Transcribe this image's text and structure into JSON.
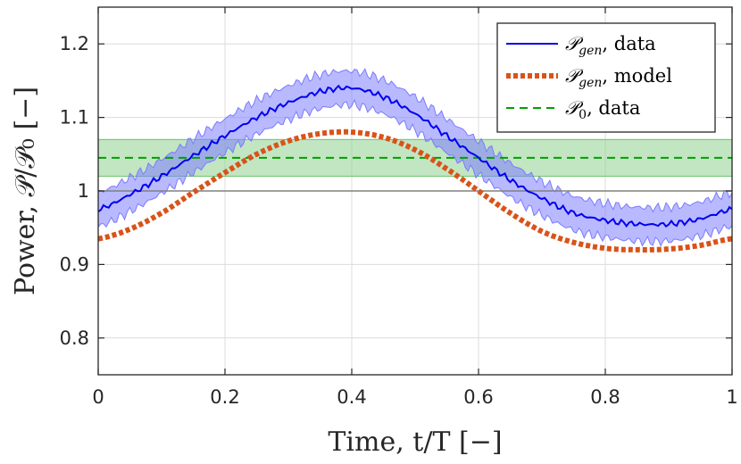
{
  "chart_data": {
    "type": "line",
    "title": "",
    "xlabel": "Time, t/T [−]",
    "ylabel": "Power, 𝒫/𝒫₀ [−]",
    "xlim": [
      0,
      1
    ],
    "ylim": [
      0.75,
      1.25
    ],
    "grid": true,
    "legend_position": "top-right",
    "x_ticks": [
      0,
      0.2,
      0.4,
      0.6,
      0.8,
      1
    ],
    "x_tick_labels": [
      "0",
      "0.2",
      "0.4",
      "0.6",
      "0.8",
      "1"
    ],
    "y_ticks": [
      0.8,
      0.9,
      1.0,
      1.1,
      1.2
    ],
    "y_tick_labels": [
      "0.8",
      "0.9",
      "1",
      "1.1",
      "1.2"
    ],
    "reference_line": {
      "y": 1.0,
      "color": "#808080"
    },
    "series": [
      {
        "name": "𝒫_gen, data",
        "legend_main": "𝒫",
        "legend_sub": "gen",
        "legend_suffix": ", data",
        "style": "solid",
        "color": "#0000ee",
        "band_color": "#8080ff",
        "x": [
          0,
          0.05,
          0.1,
          0.15,
          0.2,
          0.25,
          0.3,
          0.35,
          0.4,
          0.45,
          0.5,
          0.55,
          0.6,
          0.65,
          0.7,
          0.75,
          0.8,
          0.85,
          0.9,
          0.95,
          1.0
        ],
        "values": [
          0.975,
          0.995,
          1.02,
          1.048,
          1.075,
          1.1,
          1.12,
          1.135,
          1.14,
          1.128,
          1.105,
          1.075,
          1.045,
          1.015,
          0.99,
          0.97,
          0.96,
          0.955,
          0.955,
          0.962,
          0.975
        ],
        "band_halfwidth": 0.023
      },
      {
        "name": "𝒫_gen, model",
        "legend_main": "𝒫",
        "legend_sub": "gen",
        "legend_suffix": ", model",
        "style": "dotted",
        "color": "#d95319",
        "x": [
          0,
          0.05,
          0.1,
          0.15,
          0.2,
          0.25,
          0.3,
          0.35,
          0.4,
          0.45,
          0.5,
          0.55,
          0.6,
          0.65,
          0.7,
          0.75,
          0.8,
          0.85,
          0.9,
          0.95,
          1.0
        ],
        "values": [
          0.935,
          0.948,
          0.97,
          0.998,
          1.025,
          1.05,
          1.068,
          1.078,
          1.08,
          1.073,
          1.056,
          1.03,
          1.0,
          0.97,
          0.945,
          0.93,
          0.922,
          0.92,
          0.921,
          0.926,
          0.935
        ]
      },
      {
        "name": "𝒫₀, data",
        "legend_main": "𝒫",
        "legend_sub": "0",
        "legend_suffix": ", data",
        "style": "dashed",
        "color": "#00a000",
        "band_color": "#90d090",
        "value": 1.045,
        "band": [
          1.02,
          1.07
        ]
      }
    ]
  }
}
